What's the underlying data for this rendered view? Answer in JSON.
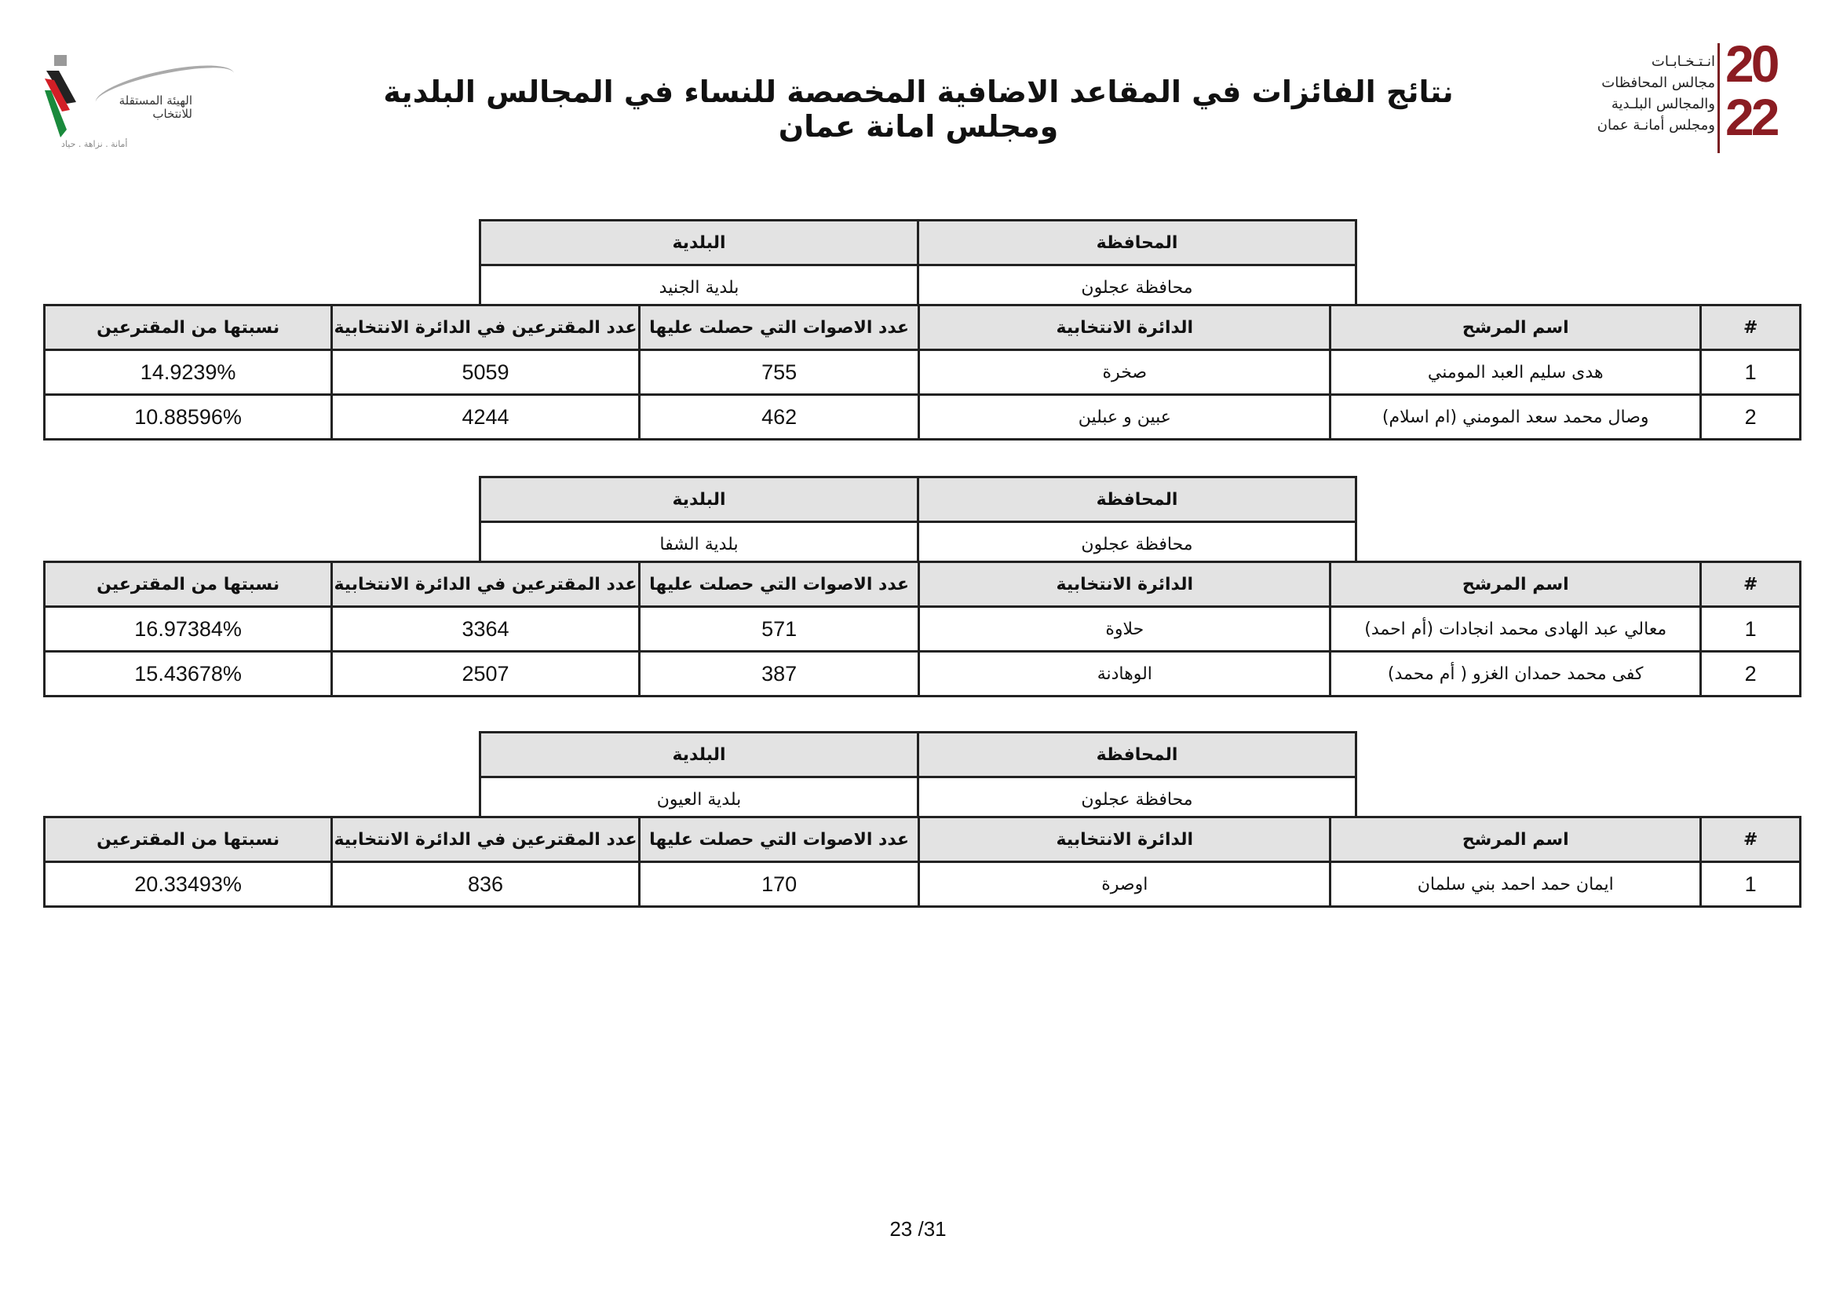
{
  "header": {
    "title": "نتائج الفائزات في المقاعد الاضافية المخصصة للنساء في المجالس البلدية ومجلس امانة عمان",
    "logo_right": {
      "line1": "انـتـخـابـات",
      "line2": "مجالس المحافظات",
      "line3": "والمجالس البلـدية",
      "line4": "ومجلس أمانـة عمان",
      "year": "2022",
      "color": "#8b1c22"
    },
    "logo_left": {
      "name": "الهيئة المستقلة للانتخاب",
      "motto": "أمانة . نزاهة . حياد"
    }
  },
  "labels": {
    "governorate": "المحافظة",
    "municipality": "البلدية",
    "columns": [
      "#",
      "اسم المرشح",
      "الدائرة الانتخابية",
      "عدد الاصوات التي حصلت عليها",
      "عدد المقترعين في الدائرة الانتخابية",
      "نسبتها من المقترعين"
    ]
  },
  "blocks": [
    {
      "governorate": "محافظة عجلون",
      "municipality": "بلدية الجنيد",
      "rows": [
        {
          "n": "1",
          "name": "هدى سليم العبد المومني",
          "district": "صخرة",
          "votes": "755",
          "voters": "5059",
          "pct": "14.9239%"
        },
        {
          "n": "2",
          "name": "وصال محمد سعد المومني (ام اسلام)",
          "district": "عبين و عبلين",
          "votes": "462",
          "voters": "4244",
          "pct": "10.88596%"
        }
      ]
    },
    {
      "governorate": "محافظة عجلون",
      "municipality": "بلدية الشفا",
      "rows": [
        {
          "n": "1",
          "name": "معالي عبد  الهادى محمد انجادات (أم احمد)",
          "district": "حلاوة",
          "votes": "571",
          "voters": "3364",
          "pct": "16.97384%"
        },
        {
          "n": "2",
          "name": "كفى محمد حمدان الغزو ( أم محمد)",
          "district": "الوهادنة",
          "votes": "387",
          "voters": "2507",
          "pct": "15.43678%"
        }
      ]
    },
    {
      "governorate": "محافظة عجلون",
      "municipality": "بلدية العيون",
      "rows": [
        {
          "n": "1",
          "name": "ايمان حمد احمد بني سلمان",
          "district": "اوصرة",
          "votes": "170",
          "voters": "836",
          "pct": "20.33493%"
        }
      ]
    }
  ],
  "footer": {
    "page": "23 /31"
  }
}
